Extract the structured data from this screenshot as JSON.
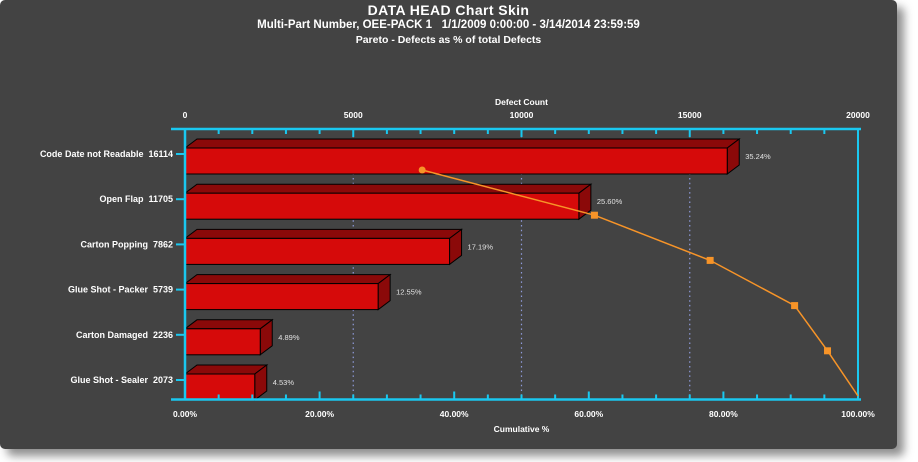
{
  "header": {
    "title": "DATA HEAD Chart Skin",
    "subtitle": "Multi-Part Number, OEE-PACK 1   1/1/2009 0:00:00 - 3/14/2014 23:59:59",
    "subtitle2": "Pareto - Defects as % of total Defects"
  },
  "chart_data": {
    "type": "bar",
    "orientation": "horizontal",
    "title": "DATA HEAD Chart Skin",
    "top_axis": {
      "label": "Defect Count",
      "min": 0,
      "max": 20000,
      "major_ticks": [
        0,
        5000,
        10000,
        15000,
        20000
      ],
      "tick_labels": [
        "0",
        "5000",
        "10000",
        "15000",
        "20000"
      ],
      "minor_tick_step": 1000
    },
    "bottom_axis": {
      "label": "Cumulative %",
      "min": 0,
      "max": 100,
      "major_ticks": [
        0,
        20,
        40,
        60,
        80,
        100
      ],
      "tick_labels": [
        "0.00%",
        "20.00%",
        "40.00%",
        "60.00%",
        "80.00%",
        "100.00%"
      ],
      "minor_tick_step": 5
    },
    "categories": [
      "Code Date not Readable",
      "Open Flap",
      "Carton Popping",
      "Glue Shot - Packer",
      "Carton Damaged",
      "Glue Shot - Sealer"
    ],
    "counts": [
      16114,
      11705,
      7862,
      5739,
      2236,
      2073
    ],
    "percent_labels": [
      "35.24%",
      "25.60%",
      "17.19%",
      "12.55%",
      "4.89%",
      "4.53%"
    ],
    "cumulative_percent": [
      35.24,
      60.84,
      78.03,
      90.58,
      95.47,
      100.0
    ],
    "gridlines_at": [
      5000,
      10000,
      15000
    ],
    "legend": "none",
    "grid": "vertical-dotted",
    "colors": {
      "panel_background": "#434343",
      "page_background": "#ffffff",
      "axis": "#1ac8f0",
      "bar_front": "#d60a0a",
      "bar_shade": "#8b0909",
      "bar_outline": "#000000",
      "cumulative_line": "#f79428",
      "gridline": "#8f9bdc",
      "text": "#ffffff"
    }
  }
}
